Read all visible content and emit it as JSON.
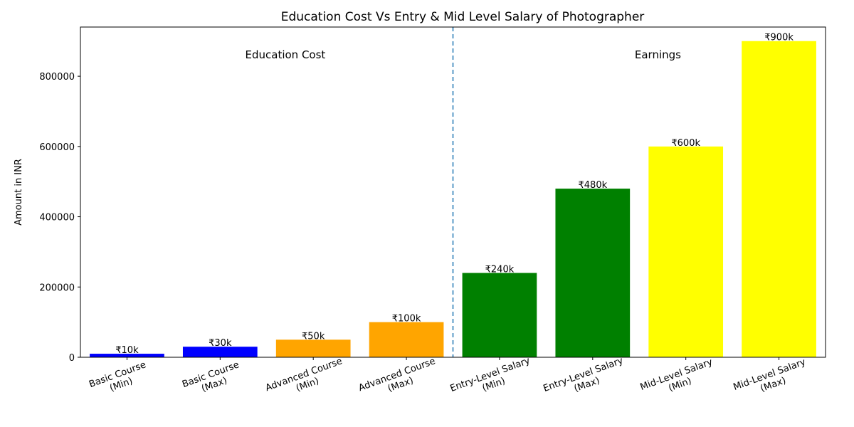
{
  "chart_data": {
    "type": "bar",
    "title": "Education Cost Vs Entry & Mid Level Salary of Photographer",
    "xlabel": "",
    "ylabel": "Amount in INR",
    "ylim": [
      0,
      940000
    ],
    "yticks": [
      0,
      200000,
      400000,
      600000,
      800000
    ],
    "ytick_labels": [
      "0",
      "200000",
      "400000",
      "600000",
      "800000"
    ],
    "grid": false,
    "categories": [
      [
        "Basic Course",
        "(Min)"
      ],
      [
        "Basic Course",
        "(Max)"
      ],
      [
        "Advanced Course",
        "(Min)"
      ],
      [
        "Advanced Course",
        "(Max)"
      ],
      [
        "Entry-Level Salary",
        "(Min)"
      ],
      [
        "Entry-Level Salary",
        "(Max)"
      ],
      [
        "Mid-Level Salary",
        "(Min)"
      ],
      [
        "Mid-Level Salary",
        "(Max)"
      ]
    ],
    "values": [
      10000,
      30000,
      50000,
      100000,
      240000,
      480000,
      600000,
      900000
    ],
    "data_labels": [
      "₹10k",
      "₹30k",
      "₹50k",
      "₹100k",
      "₹240k",
      "₹480k",
      "₹600k",
      "₹900k"
    ],
    "colors": [
      "#0000ff",
      "#0000ff",
      "#ffa500",
      "#ffa500",
      "#008000",
      "#008000",
      "#ffff00",
      "#ffff00"
    ],
    "divider_color": "#1f77b4",
    "sections": [
      {
        "label": "Education Cost"
      },
      {
        "label": "Earnings"
      }
    ]
  }
}
